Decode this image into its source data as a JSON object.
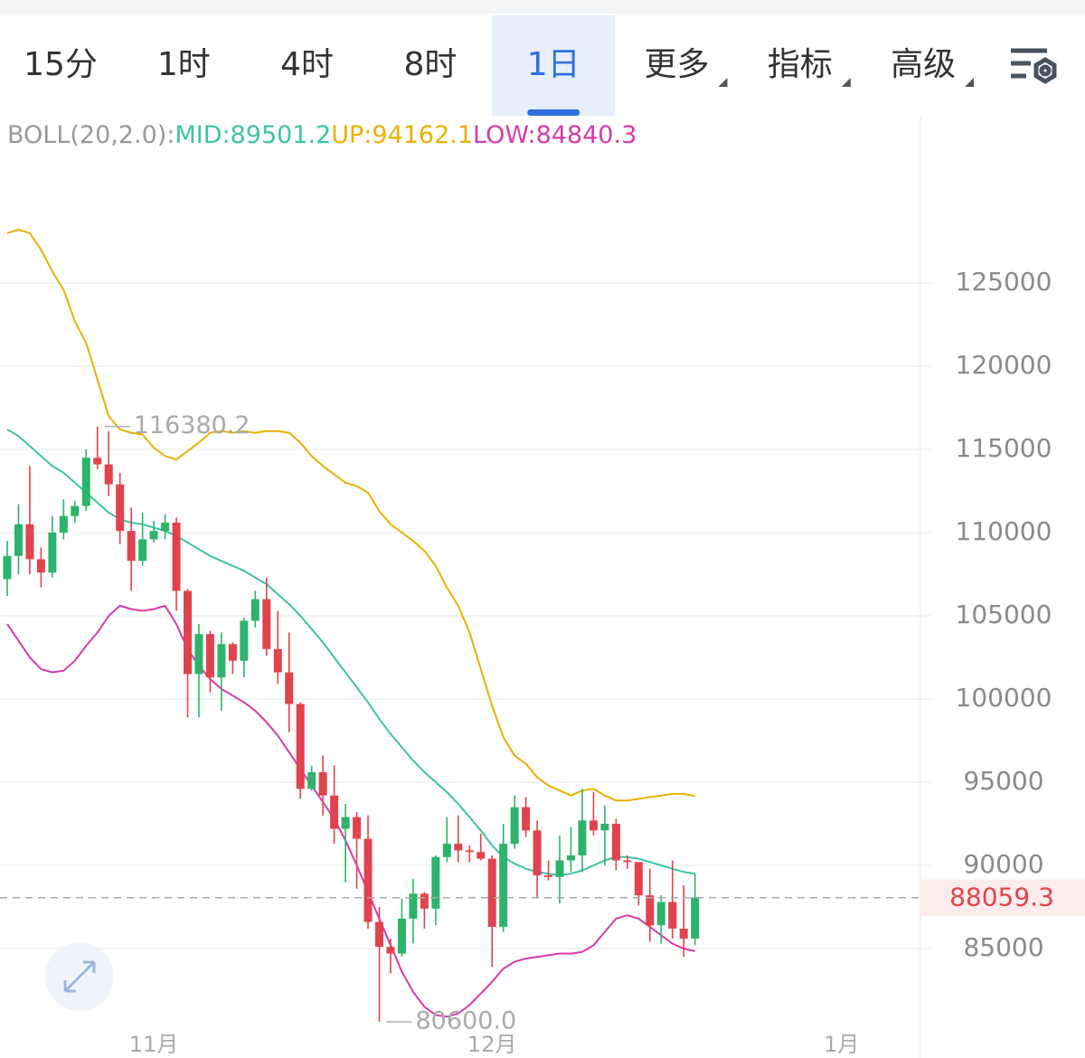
{
  "tabs": [
    {
      "label": "15分"
    },
    {
      "label": "1时"
    },
    {
      "label": "4时"
    },
    {
      "label": "8时"
    },
    {
      "label": "1日",
      "active": true
    },
    {
      "label": "更多",
      "dropdown": true
    },
    {
      "label": "指标",
      "dropdown": true
    },
    {
      "label": "高级",
      "dropdown": true
    }
  ],
  "chart_data": {
    "type": "candlestick",
    "indicator": {
      "label": "BOLL(20,2.0):",
      "label_color": "#999999",
      "items": [
        {
          "name": "MID:",
          "value": 89501.2,
          "color": "#3cc4a4",
          "values": [
            116200,
            115800,
            115200,
            114600,
            114000,
            113600,
            113000,
            112400,
            111800,
            111200,
            110800,
            110600,
            110500,
            110300,
            110100,
            109800,
            109400,
            109000,
            108600,
            108300,
            108000,
            107700,
            107300,
            106900,
            106300,
            105700,
            105000,
            104200,
            103400,
            102500,
            101600,
            100700,
            99800,
            98800,
            97900,
            97100,
            96300,
            95600,
            95000,
            94400,
            93700,
            92900,
            92100,
            91200,
            90500,
            90100,
            89800,
            89600,
            89500,
            89400,
            89500,
            89700,
            90000,
            90300,
            90500,
            90500,
            90400,
            90200,
            90000,
            89800,
            89600,
            89501.2,
            null,
            null,
            null,
            null,
            null,
            null,
            null,
            null,
            null,
            null,
            null,
            null,
            null
          ]
        },
        {
          "name": "UP:",
          "value": 94162.1,
          "color": "#e8b100",
          "values": [
            128000,
            128200,
            128000,
            127000,
            125700,
            124600,
            122700,
            121400,
            119200,
            117000,
            116200,
            116000,
            115900,
            115100,
            114600,
            114400,
            114900,
            115400,
            116000,
            116100,
            116000,
            116100,
            116000,
            116100,
            116100,
            116000,
            115400,
            114600,
            114000,
            113500,
            113000,
            112800,
            112400,
            111300,
            110500,
            110000,
            109500,
            108900,
            108000,
            106700,
            105600,
            104000,
            101800,
            99600,
            97700,
            96600,
            96100,
            95300,
            94800,
            94500,
            94200,
            94500,
            94600,
            94200,
            93900,
            93900,
            94000,
            94100,
            94200,
            94300,
            94300,
            94162.1,
            null,
            null,
            null,
            null,
            null,
            null,
            null,
            null,
            null,
            null,
            null,
            null,
            null
          ]
        },
        {
          "name": "LOW:",
          "value": 84840.3,
          "color": "#d83aa8",
          "values": [
            104500,
            103500,
            102500,
            101800,
            101600,
            101700,
            102300,
            103200,
            104000,
            105000,
            105600,
            105400,
            105300,
            105400,
            105600,
            104500,
            103000,
            102000,
            101200,
            100600,
            100200,
            99800,
            99300,
            98600,
            97800,
            96800,
            95800,
            94800,
            93800,
            92800,
            91500,
            90000,
            88400,
            86800,
            85200,
            83600,
            82400,
            81500,
            81000,
            80900,
            81100,
            81600,
            82300,
            83000,
            83800,
            84200,
            84400,
            84500,
            84600,
            84700,
            84700,
            84800,
            85200,
            86000,
            86800,
            87000,
            86800,
            86300,
            85800,
            85300,
            85000,
            84840.3,
            null,
            null,
            null,
            null,
            null,
            null,
            null,
            null,
            null,
            null,
            null,
            null,
            null
          ]
        }
      ]
    },
    "categories": [
      null,
      null,
      null,
      null,
      null,
      null,
      null,
      null,
      null,
      null,
      null,
      null,
      null,
      "11月",
      null,
      null,
      null,
      null,
      null,
      null,
      null,
      null,
      null,
      null,
      null,
      null,
      null,
      null,
      null,
      null,
      null,
      null,
      null,
      null,
      null,
      null,
      null,
      null,
      null,
      null,
      null,
      null,
      null,
      "12月",
      null,
      null,
      null,
      null,
      null,
      null,
      null,
      null,
      null,
      null,
      null,
      null,
      null,
      null,
      null,
      null,
      null,
      null,
      null,
      null,
      null,
      null,
      null,
      null,
      null,
      null,
      null,
      null,
      null,
      null,
      "1月"
    ],
    "open": [
      107200,
      108600,
      110500,
      108400,
      107600,
      110000,
      111000,
      111600,
      114500,
      114100,
      112900,
      110100,
      108300,
      109600,
      110100,
      110600,
      106500,
      101500,
      103900,
      101300,
      103300,
      102300,
      104700,
      106000,
      103000,
      101600,
      99700,
      94600,
      95600,
      94200,
      92200,
      92900,
      91600,
      86600,
      85100,
      84700,
      86800,
      88300,
      87400,
      90500,
      91300,
      90900,
      90800,
      90400,
      86300,
      91300,
      93500,
      92100,
      89400,
      89300,
      90300,
      90600,
      92700,
      92100,
      92500,
      90300,
      90200,
      88200,
      86400,
      87800,
      86200,
      85600,
      null,
      null,
      null,
      null,
      null,
      null,
      null,
      null,
      null,
      null,
      null,
      null,
      null
    ],
    "high": [
      109500,
      111700,
      114000,
      109100,
      111000,
      112000,
      111900,
      115000,
      116380.2,
      116100,
      113600,
      111500,
      111200,
      110700,
      111100,
      110900,
      106600,
      104500,
      104100,
      104000,
      103400,
      104900,
      106500,
      107300,
      105300,
      104000,
      99800,
      96000,
      96600,
      96000,
      93700,
      93200,
      93000,
      87500,
      85600,
      88000,
      89200,
      88400,
      90600,
      92900,
      93000,
      91200,
      91900,
      90600,
      92500,
      94200,
      94100,
      92700,
      90300,
      91800,
      92300,
      94600,
      94400,
      93600,
      92800,
      90600,
      90200,
      89800,
      88200,
      90300,
      88800,
      89500,
      null,
      null,
      null,
      null,
      null,
      null,
      null,
      null,
      null,
      null,
      null,
      null,
      null
    ],
    "low": [
      106200,
      107500,
      107500,
      106700,
      107300,
      109600,
      110600,
      111300,
      113800,
      112200,
      109300,
      106500,
      108000,
      109400,
      109600,
      105300,
      98900,
      98900,
      100400,
      99300,
      101500,
      101300,
      104300,
      102600,
      100900,
      98000,
      94000,
      94500,
      93000,
      91300,
      89000,
      88600,
      86200,
      80600,
      83500,
      84500,
      85300,
      86200,
      86400,
      90200,
      90200,
      90200,
      90300,
      83900,
      86000,
      91000,
      91700,
      88100,
      89100,
      87700,
      89600,
      89600,
      91800,
      90000,
      89700,
      89800,
      87600,
      85400,
      85300,
      85600,
      84500,
      85200,
      null,
      null,
      null,
      null,
      null,
      null,
      null,
      null,
      null,
      null,
      null,
      null,
      null
    ],
    "close": [
      108600,
      110500,
      108400,
      107600,
      110000,
      111000,
      111600,
      114500,
      114100,
      112900,
      110100,
      108300,
      109600,
      110100,
      110600,
      106500,
      101500,
      103900,
      101300,
      103300,
      102300,
      104700,
      106000,
      103000,
      101600,
      99700,
      94600,
      95600,
      94200,
      92200,
      92900,
      91600,
      86600,
      85100,
      84700,
      86800,
      88300,
      87400,
      90500,
      91300,
      90900,
      90800,
      90400,
      86300,
      91300,
      93500,
      92100,
      89400,
      89300,
      90300,
      90600,
      92700,
      92100,
      92500,
      90300,
      90200,
      88200,
      86400,
      87800,
      86200,
      85600,
      88059.3,
      null,
      null,
      null,
      null,
      null,
      null,
      null,
      null,
      null,
      null,
      null,
      null,
      null
    ],
    "up_color": "#2db36b",
    "down_color": "#e0434f",
    "ylim": [
      79200,
      135000
    ],
    "yticks": [
      85000,
      90000,
      95000,
      100000,
      105000,
      110000,
      115000,
      120000,
      125000
    ],
    "grid": true,
    "last_price": 88059.3,
    "max_label": 116380.2,
    "min_label": {
      "value": 80600,
      "label": "80600.0"
    }
  }
}
